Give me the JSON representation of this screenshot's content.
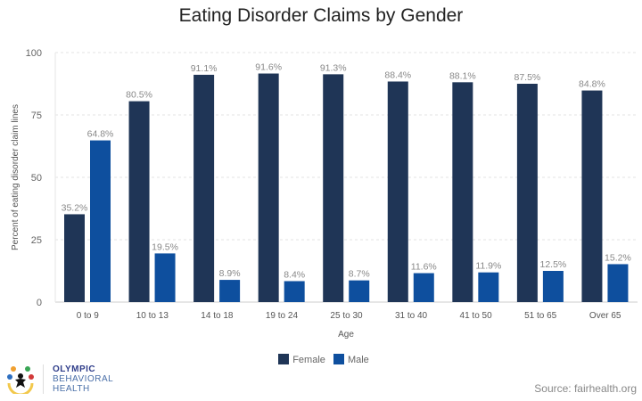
{
  "chart_data": {
    "type": "bar",
    "title": "Eating Disorder Claims by Gender",
    "xlabel": "Age",
    "ylabel": "Percent of eating disorder claim lines",
    "ylim": [
      0,
      100
    ],
    "yticks": [
      "0",
      "25",
      "50",
      "75",
      "100"
    ],
    "grid": true,
    "legend_position": "bottom",
    "categories": [
      "0 to 9",
      "10 to 13",
      "14 to 18",
      "19 to 24",
      "25 to 30",
      "31 to 40",
      "41 to 50",
      "51 to 65",
      "Over 65"
    ],
    "series": [
      {
        "name": "Female",
        "color": "#1f3556",
        "values": [
          35.2,
          80.5,
          91.1,
          91.6,
          91.3,
          88.4,
          88.1,
          87.5,
          84.8
        ],
        "labels": [
          "35.2%",
          "80.5%",
          "91.1%",
          "91.6%",
          "91.3%",
          "88.4%",
          "88.1%",
          "87.5%",
          "84.8%"
        ]
      },
      {
        "name": "Male",
        "color": "#0e4f9e",
        "values": [
          64.8,
          19.5,
          8.9,
          8.4,
          8.7,
          11.6,
          11.9,
          12.5,
          15.2
        ],
        "labels": [
          "64.8%",
          "19.5%",
          "8.9%",
          "8.4%",
          "8.7%",
          "11.6%",
          "11.9%",
          "12.5%",
          "15.2%"
        ]
      }
    ]
  },
  "logo": {
    "line1": "OLYMPIC",
    "line2": "BEHAVIORAL",
    "line3": "HEALTH"
  },
  "source": "Source:  fairhealth.org"
}
